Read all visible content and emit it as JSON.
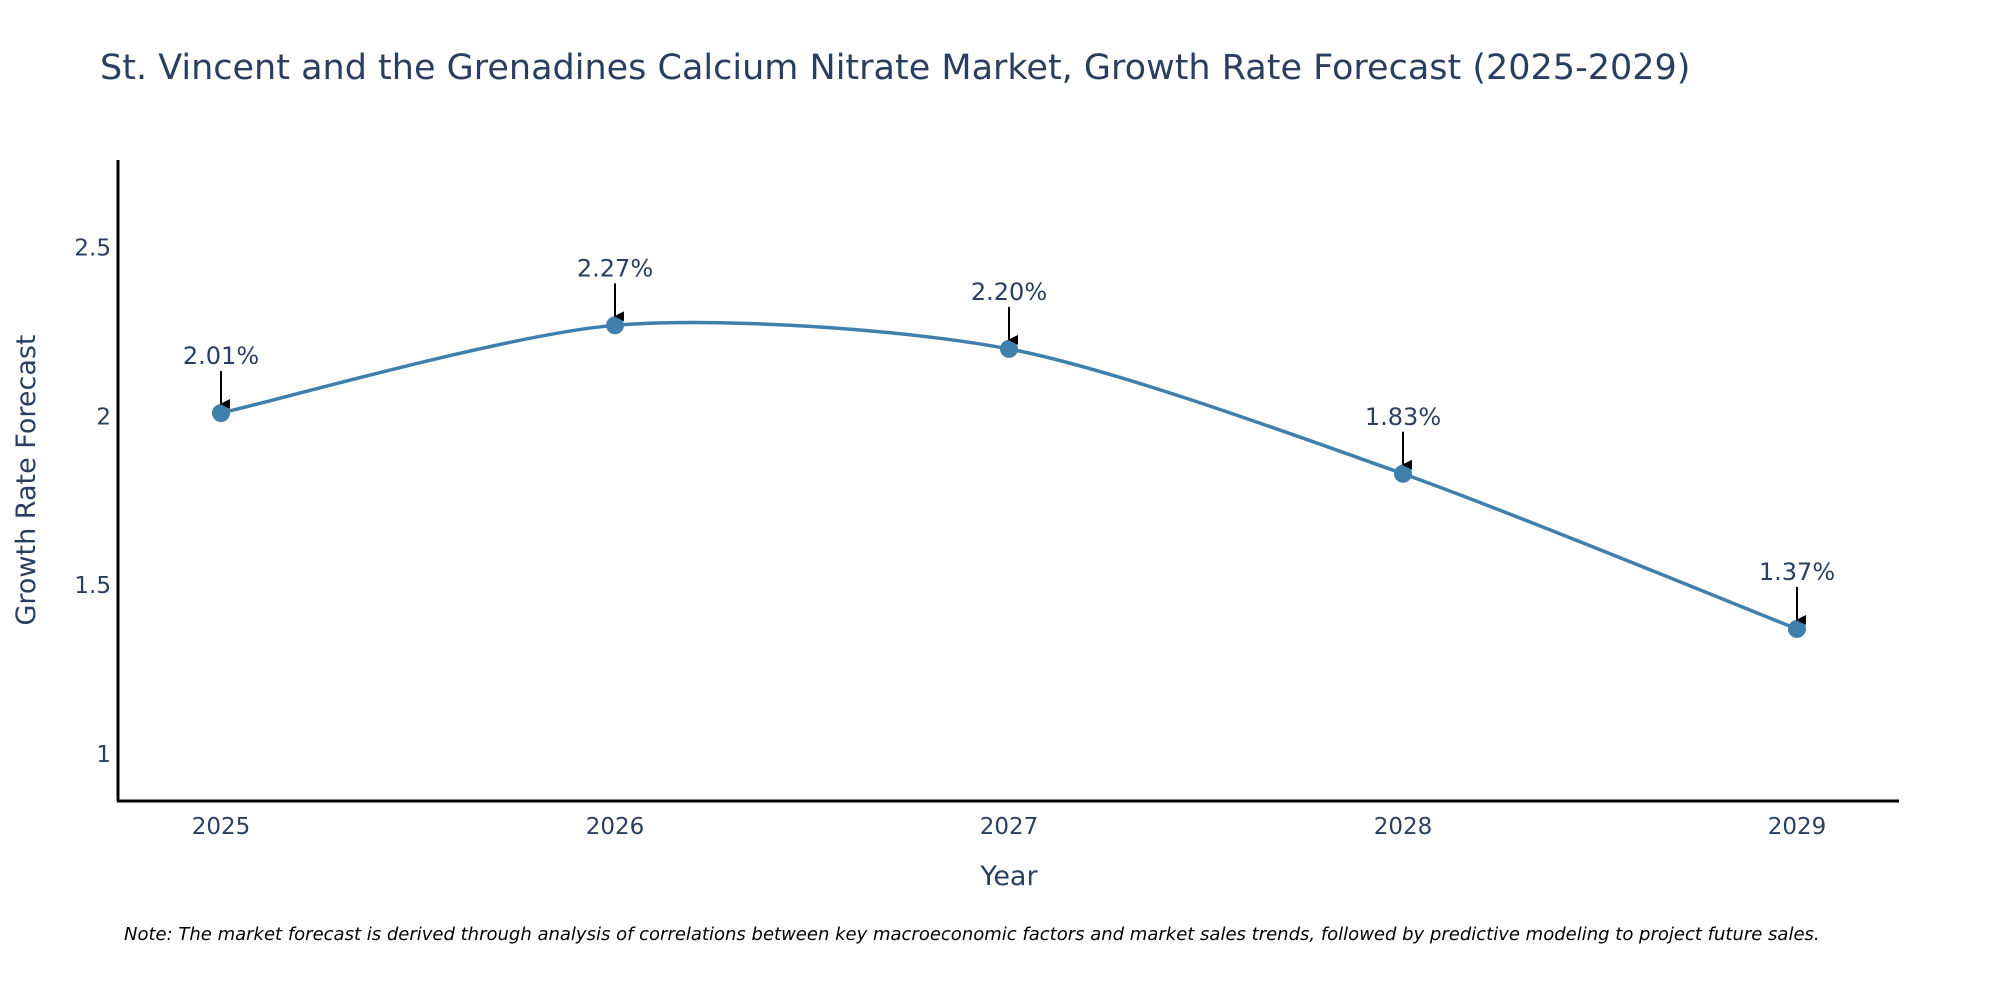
{
  "chart_data": {
    "type": "line",
    "title": "St. Vincent and the Grenadines Calcium Nitrate Market, Growth Rate Forecast (2025-2029)",
    "xlabel": "Year",
    "ylabel": "Growth Rate Forecast",
    "categories": [
      "2025",
      "2026",
      "2027",
      "2028",
      "2029"
    ],
    "series": [
      {
        "name": "Growth Rate Forecast",
        "values": [
          2.01,
          2.27,
          2.2,
          1.83,
          1.37
        ],
        "labels": [
          "2.01%",
          "2.27%",
          "2.20%",
          "1.83%",
          "1.37%"
        ],
        "color": "#3f7fab"
      }
    ],
    "yticks": [
      1,
      1.5,
      2,
      2.5
    ],
    "ytick_labels": [
      "1",
      "1.5",
      "2",
      "2.5"
    ],
    "ylim": [
      0.86,
      2.76
    ],
    "grid": false,
    "line_shape": "spline"
  },
  "note": "Note: The market forecast is derived through analysis of correlations between key macroeconomic factors and market sales trends, followed by predictive modeling to project future sales.",
  "colors": {
    "text": "#2a3f5f",
    "axis": "#000000",
    "line": "#3f7fab",
    "marker": "#3f7fab",
    "arrow": "#000000"
  }
}
